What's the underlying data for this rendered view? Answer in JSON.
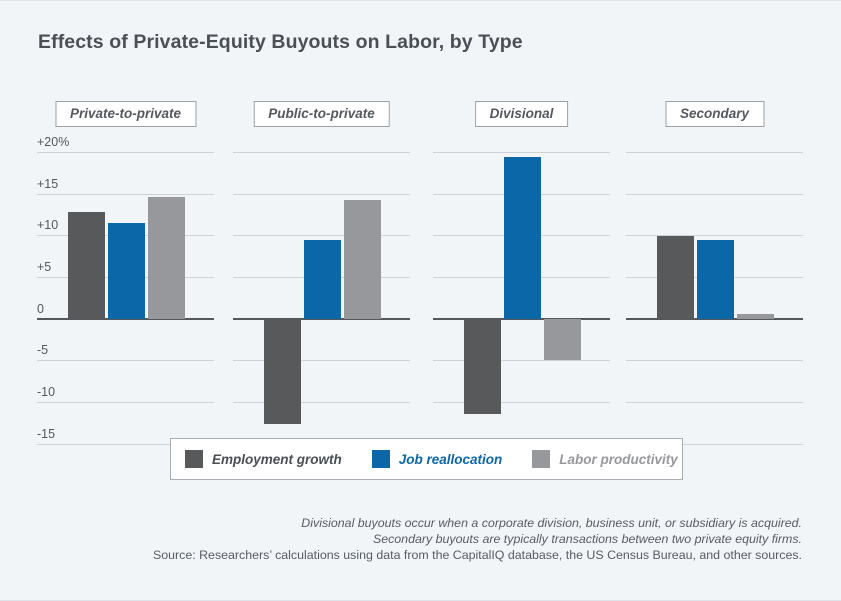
{
  "chart_data": {
    "type": "bar",
    "title": "Effects of Private-Equity Buyouts on Labor, by Type",
    "panels": [
      "Private-to-private",
      "Public-to-private",
      "Divisional",
      "Secondary"
    ],
    "series": [
      {
        "name": "Employment growth",
        "color": "#58595b",
        "text_color": "#4a4f54",
        "values": [
          12.8,
          -12.6,
          -11.5,
          9.9
        ]
      },
      {
        "name": "Job reallocation",
        "color": "#0b67a8",
        "text_color": "#0b67a8",
        "values": [
          11.5,
          9.5,
          19.4,
          9.4
        ]
      },
      {
        "name": "Labor productivity",
        "color": "#97989b",
        "text_color": "#97989b",
        "values": [
          14.6,
          14.2,
          -5.0,
          0.6
        ]
      }
    ],
    "unit": "percent",
    "ylim": [
      -15,
      20
    ],
    "yticks": [
      20,
      15,
      10,
      5,
      0,
      -5,
      -10,
      -15
    ],
    "ytick_labels": [
      "+20%",
      "+15",
      "+10",
      "+5",
      "0",
      "-5",
      "-10",
      "-15"
    ],
    "grid": true,
    "legend_position": "bottom-center",
    "background_color": "#f2f5f8"
  },
  "notes": {
    "line1": "Divisional buyouts occur when a corporate division, business unit, or subsidiary is acquired.",
    "line2": "Secondary buyouts are typically transactions between two private equity firms.",
    "source": "Source: Researchers’ calculations using data from the CapitalIQ database, the US Census Bureau, and other sources."
  }
}
